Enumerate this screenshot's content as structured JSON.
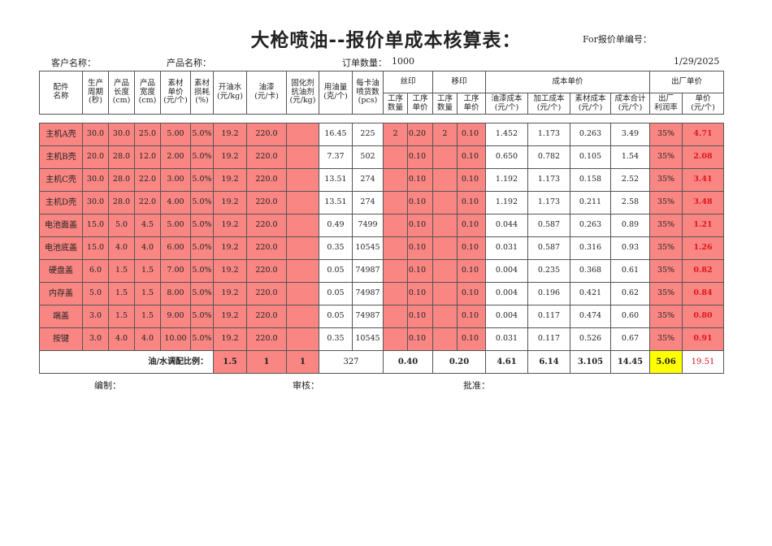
{
  "header": {
    "title": "大枪喷油--报价单成本核算表：",
    "for_no": "For报价单编号：",
    "customer": "客户名称：",
    "product": "产品名称：",
    "order_qty_label": "订单数量：",
    "order_qty": "1000",
    "date": "1/29/2025"
  },
  "columns": {
    "part": "配件\n名称",
    "cycle": "生产\n周期\n(秒)",
    "length": "产品\n长度\n(cm)",
    "width": "产品\n宽度\n(cm)",
    "mat_price": "素材\n单价\n(元/个)",
    "mat_loss": "素材\n损耗\n(%)",
    "water": "开油水\n(元/kg)",
    "paint": "油漆\n(元/卡)",
    "curing": "固化剂\n抗油剂\n(元/kg)",
    "usage": "用油量\n(克/个)",
    "per_card": "每卡油\n喷货数\n(pcs)",
    "silk": "丝印",
    "pad": "移印",
    "cost_unit": "成本单价",
    "factory_price": "出厂单价",
    "proc_qty": "工序\n数量",
    "proc_price": "工序\n单价",
    "paint_cost": "油漆成本\n(元/个)",
    "process_cost": "加工成本\n(元/个)",
    "material_cost": "素材成本\n(元/个)",
    "cost_total": "成本合计\n(元/个)",
    "profit": "出厂\n利润率",
    "unit_price": "单价\n(元/个)"
  },
  "rows": [
    {
      "name": "主机A壳",
      "cycle": "30.0",
      "len": "30.0",
      "wid": "25.0",
      "mat": "5.00",
      "loss": "5.0%",
      "water": "19.2",
      "paint": "220.0",
      "cur": "",
      "use": "16.45",
      "pcs": "225",
      "sq": "2",
      "sp": "0.20",
      "pq": "2",
      "pp": "0.10",
      "pc": "1.452",
      "prc": "1.173",
      "mc": "0.263",
      "tot": "3.49",
      "pr": "35%",
      "up": "4.71"
    },
    {
      "name": "主机B壳",
      "cycle": "20.0",
      "len": "28.0",
      "wid": "12.0",
      "mat": "2.00",
      "loss": "5.0%",
      "water": "19.2",
      "paint": "220.0",
      "cur": "",
      "use": "7.37",
      "pcs": "502",
      "sq": "",
      "sp": "0.10",
      "pq": "",
      "pp": "0.10",
      "pc": "0.650",
      "prc": "0.782",
      "mc": "0.105",
      "tot": "1.54",
      "pr": "35%",
      "up": "2.08"
    },
    {
      "name": "主机C壳",
      "cycle": "30.0",
      "len": "28.0",
      "wid": "22.0",
      "mat": "3.00",
      "loss": "5.0%",
      "water": "19.2",
      "paint": "220.0",
      "cur": "",
      "use": "13.51",
      "pcs": "274",
      "sq": "",
      "sp": "0.10",
      "pq": "",
      "pp": "0.10",
      "pc": "1.192",
      "prc": "1.173",
      "mc": "0.158",
      "tot": "2.52",
      "pr": "35%",
      "up": "3.41"
    },
    {
      "name": "主机D壳",
      "cycle": "30.0",
      "len": "28.0",
      "wid": "22.0",
      "mat": "4.00",
      "loss": "5.0%",
      "water": "19.2",
      "paint": "220.0",
      "cur": "",
      "use": "13.51",
      "pcs": "274",
      "sq": "",
      "sp": "0.10",
      "pq": "",
      "pp": "0.10",
      "pc": "1.192",
      "prc": "1.173",
      "mc": "0.211",
      "tot": "2.58",
      "pr": "35%",
      "up": "3.48"
    },
    {
      "name": "电池面盖",
      "cycle": "15.0",
      "len": "5.0",
      "wid": "4.5",
      "mat": "5.00",
      "loss": "5.0%",
      "water": "19.2",
      "paint": "220.0",
      "cur": "",
      "use": "0.49",
      "pcs": "7499",
      "sq": "",
      "sp": "0.10",
      "pq": "",
      "pp": "0.10",
      "pc": "0.044",
      "prc": "0.587",
      "mc": "0.263",
      "tot": "0.89",
      "pr": "35%",
      "up": "1.21"
    },
    {
      "name": "电池底盖",
      "cycle": "15.0",
      "len": "4.0",
      "wid": "4.0",
      "mat": "6.00",
      "loss": "5.0%",
      "water": "19.2",
      "paint": "220.0",
      "cur": "",
      "use": "0.35",
      "pcs": "10545",
      "sq": "",
      "sp": "0.10",
      "pq": "",
      "pp": "0.10",
      "pc": "0.031",
      "prc": "0.587",
      "mc": "0.316",
      "tot": "0.93",
      "pr": "35%",
      "up": "1.26"
    },
    {
      "name": "硬盘盖",
      "cycle": "6.0",
      "len": "1.5",
      "wid": "1.5",
      "mat": "7.00",
      "loss": "5.0%",
      "water": "19.2",
      "paint": "220.0",
      "cur": "",
      "use": "0.05",
      "pcs": "74987",
      "sq": "",
      "sp": "0.10",
      "pq": "",
      "pp": "0.10",
      "pc": "0.004",
      "prc": "0.235",
      "mc": "0.368",
      "tot": "0.61",
      "pr": "35%",
      "up": "0.82"
    },
    {
      "name": "内存盖",
      "cycle": "5.0",
      "len": "1.5",
      "wid": "1.5",
      "mat": "8.00",
      "loss": "5.0%",
      "water": "19.2",
      "paint": "220.0",
      "cur": "",
      "use": "0.05",
      "pcs": "74987",
      "sq": "",
      "sp": "0.10",
      "pq": "",
      "pp": "0.10",
      "pc": "0.004",
      "prc": "0.196",
      "mc": "0.421",
      "tot": "0.62",
      "pr": "35%",
      "up": "0.84"
    },
    {
      "name": "端盖",
      "cycle": "3.0",
      "len": "1.5",
      "wid": "1.5",
      "mat": "9.00",
      "loss": "5.0%",
      "water": "19.2",
      "paint": "220.0",
      "cur": "",
      "use": "0.05",
      "pcs": "74987",
      "sq": "",
      "sp": "0.10",
      "pq": "",
      "pp": "0.10",
      "pc": "0.004",
      "prc": "0.117",
      "mc": "0.474",
      "tot": "0.60",
      "pr": "35%",
      "up": "0.80"
    },
    {
      "name": "按键",
      "cycle": "3.0",
      "len": "4.0",
      "wid": "4.0",
      "mat": "10.00",
      "loss": "5.0%",
      "water": "19.2",
      "paint": "220.0",
      "cur": "",
      "use": "0.35",
      "pcs": "10545",
      "sq": "",
      "sp": "0.10",
      "pq": "",
      "pp": "0.10",
      "pc": "0.031",
      "prc": "0.117",
      "mc": "0.526",
      "tot": "0.67",
      "pr": "35%",
      "up": "0.91"
    }
  ],
  "totals": {
    "label": "油/水调配比例：",
    "r1": "1.5",
    "r2": "1",
    "r3": "1",
    "use": "327",
    "silk": "0.40",
    "pad": "0.20",
    "paint_cost": "4.61",
    "process_cost": "6.14",
    "material_cost": "3.105",
    "cost_total": "14.45",
    "profit": "5.06",
    "unit_price": "19.51"
  },
  "footer": {
    "compiled": "编制：",
    "review": "审核：",
    "approve": "批准："
  },
  "colors": {
    "pink": "#f98683",
    "red_text": "#e1141c",
    "highlight": "#ffff00"
  }
}
